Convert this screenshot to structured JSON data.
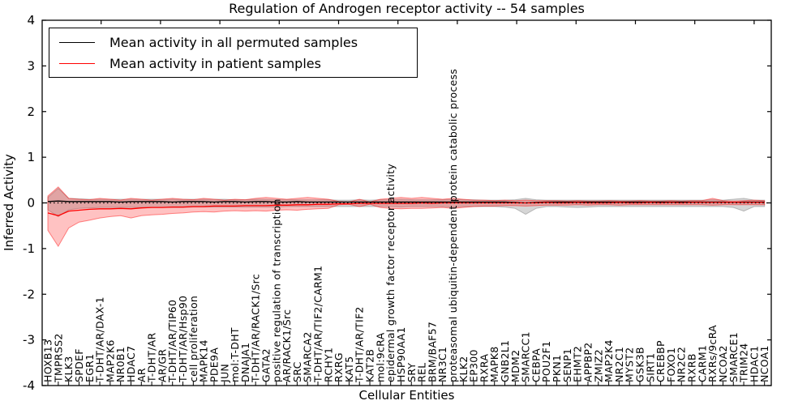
{
  "title": "Regulation of Androgen receptor activity -- 54 samples",
  "legend": [
    {
      "label": "Mean activity in all permuted samples",
      "color": "#000000"
    },
    {
      "label": "Mean activity in patient samples",
      "color": "#ff0000"
    }
  ],
  "colors": {
    "permuted_line": "#000000",
    "patient_line": "#ff0000",
    "permuted_band": "rgba(128,128,128,0.32)",
    "patient_band": "rgba(255,30,30,0.27)",
    "patient_band_edge": "rgba(255,0,0,0.45)",
    "permuted_band_edge": "rgba(120,120,120,0.45)"
  },
  "chart_data": {
    "type": "line",
    "title": "Regulation of Androgen receptor activity -- 54 samples",
    "xlabel": "Cellular Entities",
    "ylabel": "Inferred Activity",
    "ylim": [
      -4,
      4
    ],
    "yticks": [
      4,
      3,
      2,
      1,
      0,
      -1,
      -2,
      -3,
      -4
    ],
    "grid": false,
    "legend_position": "upper left",
    "zero_line": true,
    "categories": [
      "HOXB13",
      "TMPRSS2",
      "KLK3",
      "SPDEF",
      "EGR1",
      "T-DHT/AR/DAX-1",
      "MAP2K6",
      "NR0B1",
      "HDAC7",
      "AR",
      "T-DHT/AR",
      "AR/GR",
      "T-DHT/AR/TIP60",
      "T-DHT/AR/Hsp90",
      "cell proliferation",
      "MAPK14",
      "PDE9A",
      "JUN",
      "mol:T-DHT",
      "DNAJA1",
      "T-DHT/AR/RACK1/Src",
      "GATA2",
      "positive regulation of transcription",
      "AR/RACK1/Src",
      "SRC",
      "SMARCA2",
      "T-DHT/AR/TIF2/CARM1",
      "RCHY1",
      "RXRG",
      "KAT5",
      "T-DHT/AR/TIF2",
      "KAT2B",
      "mol:9cRA",
      "epidermal growth factor receptor activity",
      "HSP90AA1",
      "SRY",
      "REL",
      "BRM/BAF57",
      "NR3C1",
      "proteasomal ubiquitin-dependent protein catabolic process",
      "KLK2",
      "EP300",
      "RXRA",
      "MAPK8",
      "GNB2L1",
      "MDM2",
      "SMARCC1",
      "CEBPA",
      "POU2F1",
      "PKN1",
      "SENP1",
      "EHMT2",
      "APPBP2",
      "ZMIZ2",
      "MAP2K4",
      "NR2C1",
      "MYST2",
      "GSK3B",
      "SIRT1",
      "CREBBP",
      "FOXO1",
      "NR2C2",
      "RXRB",
      "CARM1",
      "RXRs/9cRA",
      "NCOA2",
      "SMARCE1",
      "TRIM24",
      "HDAC1",
      "NCOA1"
    ],
    "series": [
      {
        "name": "Mean activity in all permuted samples",
        "values": [
          0.03,
          0.04,
          0.03,
          0.03,
          0.03,
          0.03,
          0.03,
          0.02,
          0.03,
          0.03,
          0.03,
          0.03,
          0.02,
          0.03,
          0.03,
          0.03,
          0.02,
          0.03,
          0.03,
          0.02,
          0.03,
          0.03,
          0.02,
          0.02,
          0.03,
          0.02,
          0.02,
          0.02,
          0.02,
          0.02,
          0.02,
          0.02,
          0.02,
          0.02,
          0.02,
          0.02,
          0.02,
          0.02,
          0.02,
          0.02,
          0.02,
          0.02,
          0.02,
          0.02,
          0.02,
          0.01,
          0.0,
          0.01,
          0.02,
          0.02,
          0.02,
          0.02,
          0.02,
          0.02,
          0.02,
          0.02,
          0.02,
          0.02,
          0.02,
          0.02,
          0.02,
          0.02,
          0.02,
          0.02,
          0.02,
          0.02,
          0.01,
          0.02,
          0.02,
          0.02
        ]
      },
      {
        "name": "Mean activity in patient samples",
        "values": [
          -0.22,
          -0.28,
          -0.18,
          -0.16,
          -0.14,
          -0.13,
          -0.13,
          -0.12,
          -0.13,
          -0.11,
          -0.1,
          -0.1,
          -0.09,
          -0.09,
          -0.08,
          -0.08,
          -0.07,
          -0.07,
          -0.07,
          -0.06,
          -0.06,
          -0.06,
          -0.05,
          -0.05,
          -0.04,
          -0.04,
          -0.03,
          -0.03,
          -0.02,
          -0.02,
          -0.01,
          -0.01,
          -0.01,
          -0.01,
          -0.01,
          -0.01,
          0.0,
          -0.01,
          0.0,
          0.0,
          0.0,
          0.0,
          0.0,
          0.0,
          0.0,
          0.0,
          0.0,
          0.0,
          0.01,
          0.0,
          0.0,
          0.01,
          0.0,
          0.0,
          0.0,
          0.01,
          0.0,
          0.0,
          0.01,
          0.0,
          0.01,
          0.0,
          0.01,
          0.01,
          0.01,
          0.01,
          0.01,
          0.01,
          0.01,
          0.01
        ]
      }
    ],
    "bands": [
      {
        "name": "permuted-range",
        "upper": [
          0.12,
          0.32,
          0.1,
          0.09,
          0.08,
          0.08,
          0.08,
          0.08,
          0.08,
          0.08,
          0.08,
          0.08,
          0.08,
          0.08,
          0.08,
          0.08,
          0.08,
          0.08,
          0.07,
          0.07,
          0.08,
          0.08,
          0.07,
          0.07,
          0.07,
          0.07,
          0.07,
          0.07,
          0.06,
          0.06,
          0.07,
          0.06,
          0.07,
          0.07,
          0.08,
          0.07,
          0.07,
          0.07,
          0.07,
          0.08,
          0.07,
          0.07,
          0.06,
          0.06,
          0.06,
          0.07,
          0.1,
          0.07,
          0.06,
          0.06,
          0.06,
          0.06,
          0.06,
          0.06,
          0.06,
          0.06,
          0.06,
          0.06,
          0.06,
          0.06,
          0.06,
          0.06,
          0.06,
          0.06,
          0.07,
          0.06,
          0.08,
          0.1,
          0.06,
          0.06
        ],
        "lower": [
          -0.15,
          -0.3,
          -0.15,
          -0.12,
          -0.11,
          -0.1,
          -0.1,
          -0.1,
          -0.1,
          -0.1,
          -0.1,
          -0.1,
          -0.1,
          -0.1,
          -0.09,
          -0.09,
          -0.09,
          -0.09,
          -0.09,
          -0.09,
          -0.09,
          -0.09,
          -0.09,
          -0.08,
          -0.08,
          -0.08,
          -0.08,
          -0.08,
          -0.08,
          -0.08,
          -0.08,
          -0.08,
          -0.08,
          -0.08,
          -0.09,
          -0.08,
          -0.08,
          -0.08,
          -0.08,
          -0.09,
          -0.08,
          -0.08,
          -0.08,
          -0.08,
          -0.09,
          -0.12,
          -0.25,
          -0.12,
          -0.08,
          -0.08,
          -0.09,
          -0.1,
          -0.09,
          -0.08,
          -0.08,
          -0.08,
          -0.08,
          -0.08,
          -0.08,
          -0.08,
          -0.08,
          -0.08,
          -0.08,
          -0.08,
          -0.08,
          -0.08,
          -0.1,
          -0.18,
          -0.08,
          -0.08
        ]
      },
      {
        "name": "patient-range",
        "upper": [
          0.15,
          0.35,
          0.1,
          0.08,
          0.07,
          0.1,
          0.08,
          0.06,
          0.1,
          0.08,
          0.06,
          0.08,
          0.1,
          0.08,
          0.07,
          0.1,
          0.08,
          0.06,
          0.08,
          0.07,
          0.1,
          0.12,
          0.1,
          0.08,
          0.1,
          0.12,
          0.1,
          0.08,
          0.03,
          0.02,
          0.08,
          0.02,
          0.08,
          0.1,
          0.12,
          0.1,
          0.12,
          0.1,
          0.08,
          0.1,
          0.08,
          0.06,
          0.06,
          0.05,
          0.06,
          0.05,
          0.06,
          0.05,
          0.05,
          0.05,
          0.04,
          0.05,
          0.04,
          0.04,
          0.05,
          0.04,
          0.04,
          0.05,
          0.04,
          0.04,
          0.05,
          0.04,
          0.05,
          0.05,
          0.1,
          0.05,
          0.04,
          0.05,
          0.06,
          0.05
        ],
        "lower": [
          -0.6,
          -0.95,
          -0.55,
          -0.42,
          -0.38,
          -0.33,
          -0.3,
          -0.28,
          -0.33,
          -0.28,
          -0.26,
          -0.25,
          -0.23,
          -0.22,
          -0.2,
          -0.19,
          -0.2,
          -0.18,
          -0.17,
          -0.18,
          -0.17,
          -0.18,
          -0.16,
          -0.15,
          -0.16,
          -0.14,
          -0.13,
          -0.12,
          -0.04,
          -0.03,
          -0.08,
          -0.03,
          -0.1,
          -0.12,
          -0.13,
          -0.12,
          -0.12,
          -0.11,
          -0.1,
          -0.12,
          -0.1,
          -0.08,
          -0.07,
          -0.07,
          -0.06,
          -0.06,
          -0.07,
          -0.06,
          -0.05,
          -0.05,
          -0.05,
          -0.04,
          -0.05,
          -0.04,
          -0.04,
          -0.05,
          -0.04,
          -0.04,
          -0.04,
          -0.04,
          -0.04,
          -0.04,
          -0.04,
          -0.04,
          -0.05,
          -0.04,
          -0.04,
          -0.04,
          -0.04,
          -0.04
        ]
      }
    ]
  }
}
